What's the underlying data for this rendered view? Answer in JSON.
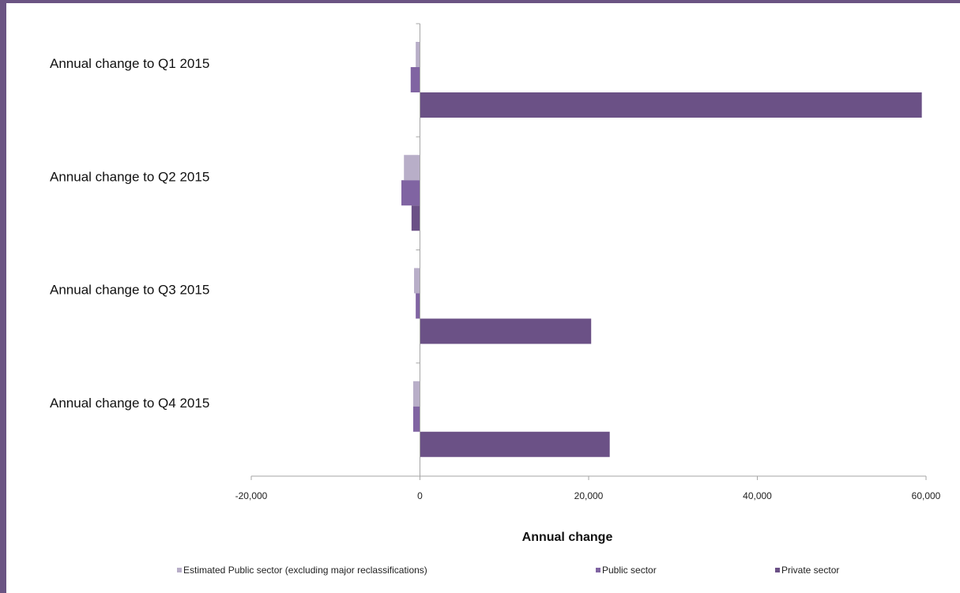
{
  "chart_data": {
    "type": "bar",
    "orientation": "horizontal",
    "categories": [
      "Annual change to Q1 2015",
      "Annual change to Q2 2015",
      "Annual change to Q3 2015",
      "Annual change to Q4 2015"
    ],
    "series": [
      {
        "name": "Estimated Public sector (excluding major reclassifications)",
        "color": "#b8aec8",
        "values": [
          -500,
          -1900,
          -700,
          -800
        ]
      },
      {
        "name": "Public sector",
        "color": "#8064a2",
        "values": [
          -1100,
          -2200,
          -500,
          -800
        ]
      },
      {
        "name": "Private sector",
        "color": "#6b5186",
        "values": [
          59500,
          -1000,
          20300,
          22500
        ]
      }
    ],
    "xlabel": "Annual change",
    "xlim": [
      -20000,
      60000
    ],
    "xticks": [
      -20000,
      0,
      20000,
      40000,
      60000
    ],
    "xtick_labels": [
      "-20,000",
      "0",
      "20,000",
      "40,000",
      "60,000"
    ],
    "grid": false,
    "legend_position": "bottom"
  }
}
